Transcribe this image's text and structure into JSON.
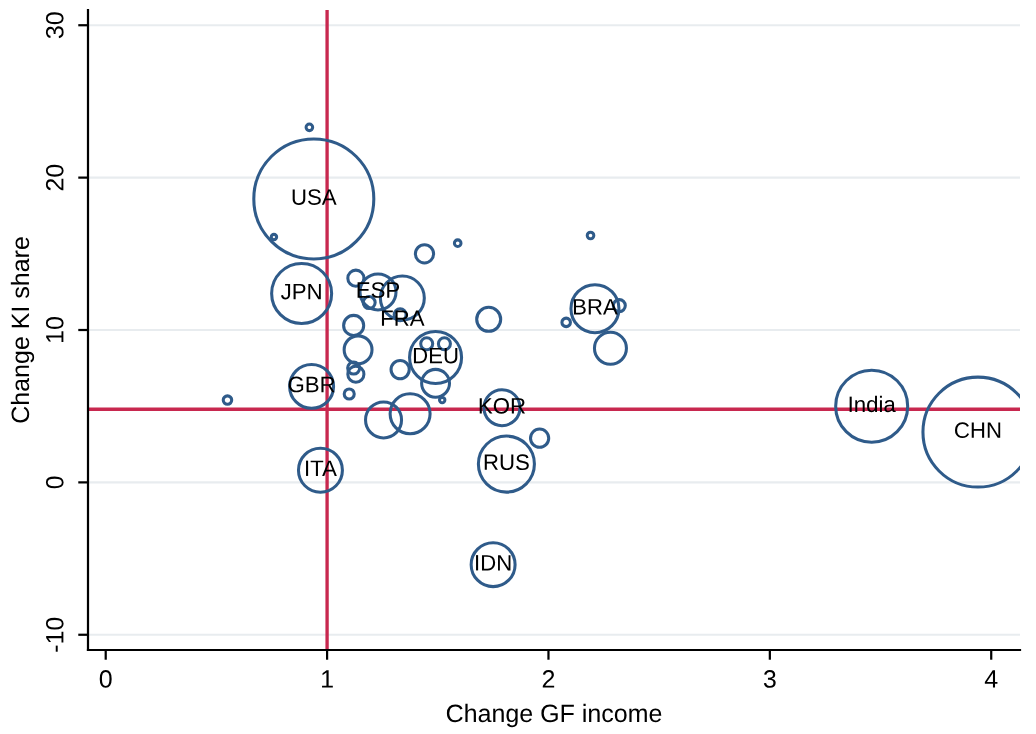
{
  "chart_data": {
    "type": "bubble",
    "xlabel": "Change GF income",
    "ylabel": "Change KI share",
    "xlim": [
      -0.08,
      4.13
    ],
    "ylim": [
      -11,
      31
    ],
    "xticks": [
      0,
      1,
      2,
      3,
      4
    ],
    "yticks": [
      -10,
      0,
      10,
      20,
      30
    ],
    "grid": "y",
    "legend": false,
    "series": [
      {
        "color": "#2f5b8a",
        "x": [
          0.92,
          0.94,
          0.76,
          1.59,
          1.44,
          2.19,
          0.885,
          1.13,
          1.23,
          1.34,
          1.19,
          1.33,
          1.73,
          2.21,
          2.32,
          2.08,
          2.28,
          1.12,
          1.14,
          1.12,
          1.13,
          1.1,
          1.33,
          1.49,
          1.45,
          1.53,
          1.49,
          1.52,
          0.93,
          0.55,
          1.255,
          1.375,
          1.79,
          1.96,
          1.81,
          0.97,
          1.75,
          3.46,
          3.94
        ],
        "values": [
          23.3,
          18.6,
          16.1,
          15.7,
          15.0,
          16.2,
          12.4,
          13.4,
          12.5,
          12.1,
          11.8,
          11.0,
          10.7,
          11.4,
          11.6,
          10.5,
          8.8,
          10.3,
          8.7,
          7.5,
          7.1,
          5.8,
          7.4,
          8.2,
          9.1,
          9.1,
          6.5,
          5.4,
          6.3,
          5.4,
          4.1,
          4.5,
          4.9,
          2.9,
          1.2,
          0.8,
          -5.4,
          5.0,
          3.3
        ],
        "sizes": [
          0.003,
          1,
          0.002,
          0.003,
          0.023,
          0.003,
          0.25,
          0.018,
          0.09,
          0.134,
          0.01,
          0.01,
          0.04,
          0.16,
          0.01,
          0.005,
          0.071,
          0.028,
          0.054,
          0.01,
          0.018,
          0.007,
          0.023,
          0.188,
          0.01,
          0.01,
          0.054,
          0.002,
          0.134,
          0.005,
          0.09,
          0.111,
          0.09,
          0.023,
          0.218,
          0.134,
          0.134,
          0.36,
          0.84
        ]
      }
    ],
    "ref_lines": [
      {
        "axis": "x",
        "value": 1,
        "color": "#c8284f"
      },
      {
        "axis": "y",
        "value": 4.8,
        "color": "#c8284f"
      }
    ],
    "annotations": [
      {
        "text": "USA",
        "x": 0.94,
        "y": 18.6
      },
      {
        "text": "JPN",
        "x": 0.885,
        "y": 12.4
      },
      {
        "text": "ESP",
        "x": 1.23,
        "y": 12.5
      },
      {
        "text": "FRA",
        "x": 1.34,
        "y": 12.1
      },
      {
        "text": "BRA",
        "x": 2.21,
        "y": 11.4
      },
      {
        "text": "DEU",
        "x": 1.49,
        "y": 8.2
      },
      {
        "text": "GBR",
        "x": 0.93,
        "y": 6.3
      },
      {
        "text": "KOR",
        "x": 1.79,
        "y": 4.9
      },
      {
        "text": "RUS",
        "x": 1.81,
        "y": 1.2
      },
      {
        "text": "ITA",
        "x": 0.97,
        "y": 0.8
      },
      {
        "text": "IDN",
        "x": 1.75,
        "y": -5.4
      },
      {
        "text": "India",
        "x": 3.46,
        "y": 5.0
      },
      {
        "text": "CHN",
        "x": 3.94,
        "y": 3.3
      }
    ]
  }
}
